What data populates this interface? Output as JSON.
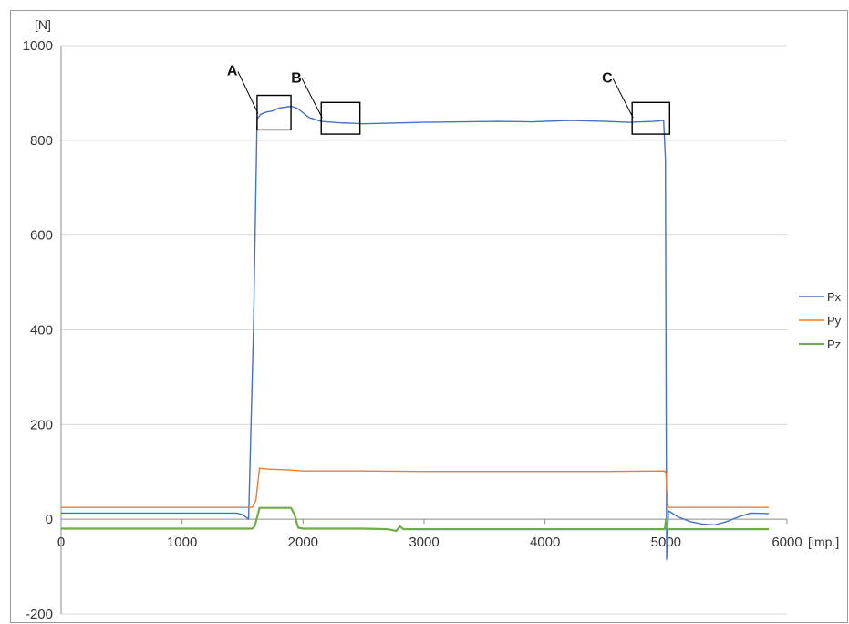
{
  "chart_data": {
    "type": "line",
    "title": "",
    "ylabel": "[N]",
    "xlabel": "[imp.]",
    "xlim": [
      0,
      6000
    ],
    "ylim": [
      -200,
      1000
    ],
    "x_ticks": [
      "0",
      "1000",
      "2000",
      "3000",
      "4000",
      "5000",
      "6000"
    ],
    "y_ticks": [
      "-200",
      "0",
      "200",
      "400",
      "600",
      "800",
      "1000"
    ],
    "grid": true,
    "legend_position": "right",
    "series": [
      {
        "name": "Px",
        "color": "#4472C4",
        "x": [
          0,
          1450,
          1500,
          1550,
          1590,
          1620,
          1650,
          1700,
          1750,
          1800,
          1850,
          1900,
          1950,
          2050,
          2150,
          2300,
          2500,
          2700,
          3000,
          3300,
          3600,
          3900,
          4200,
          4500,
          4700,
          4900,
          4980,
          4995,
          5005,
          5020,
          5100,
          5200,
          5300,
          5400,
          5500,
          5600,
          5700,
          5850
        ],
        "y": [
          13,
          13,
          10,
          0,
          400,
          845,
          855,
          860,
          862,
          868,
          870,
          872,
          868,
          848,
          840,
          837,
          835,
          836,
          838,
          839,
          840,
          839,
          842,
          840,
          838,
          840,
          842,
          760,
          -85,
          18,
          5,
          -5,
          -10,
          -12,
          -5,
          5,
          13,
          12
        ]
      },
      {
        "name": "Py",
        "color": "#ED7D31",
        "x": [
          0,
          1580,
          1610,
          1640,
          1700,
          1900,
          2000,
          2500,
          3000,
          3500,
          4000,
          4500,
          4990,
          5000,
          5010,
          5020,
          5850
        ],
        "y": [
          25,
          25,
          40,
          108,
          106,
          104,
          102,
          102,
          101,
          101,
          101,
          101,
          102,
          95,
          35,
          25,
          25
        ]
      },
      {
        "name": "Pz",
        "color": "#70AD47",
        "x": [
          0,
          1580,
          1600,
          1640,
          1700,
          1800,
          1900,
          1930,
          1960,
          2000,
          2200,
          2500,
          2700,
          2770,
          2800,
          2830,
          2900,
          3500,
          4000,
          4500,
          4990,
          5000,
          5010,
          5020,
          5850
        ],
        "y": [
          -20,
          -20,
          -15,
          24,
          24,
          24,
          24,
          10,
          -18,
          -20,
          -20,
          -20,
          -21,
          -25,
          -15,
          -21,
          -21,
          -21,
          -21,
          -21,
          -21,
          0,
          -18,
          -21,
          -21
        ]
      }
    ],
    "annotations": [
      {
        "label": "A",
        "x_range": [
          1620,
          1900
        ],
        "y_range": [
          822,
          895
        ]
      },
      {
        "label": "B",
        "x_range": [
          2150,
          2470
        ],
        "y_range": [
          813,
          880
        ]
      },
      {
        "label": "C",
        "x_range": [
          4720,
          5030
        ],
        "y_range": [
          813,
          880
        ]
      }
    ]
  }
}
